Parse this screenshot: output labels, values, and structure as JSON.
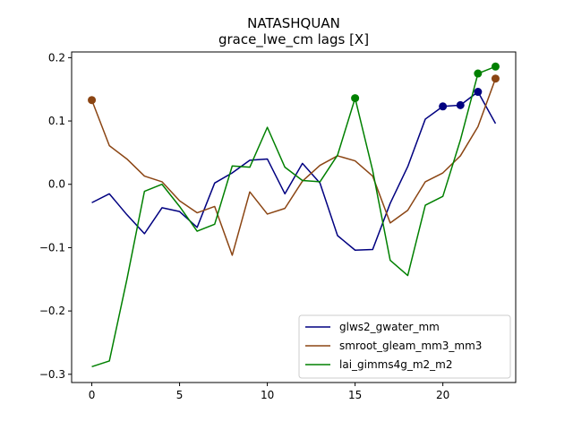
{
  "chart_data": {
    "type": "line",
    "title": "NATASHQUAN",
    "subtitle": "grace_lwe_cm lags [X]",
    "xlabel": "",
    "ylabel": "",
    "xlim": [
      -1.15,
      24.15
    ],
    "ylim": [
      -0.313,
      0.209
    ],
    "x_ticks": [
      0,
      5,
      10,
      15,
      20
    ],
    "x_tick_labels": [
      "0",
      "5",
      "10",
      "15",
      "20"
    ],
    "y_ticks": [
      -0.3,
      -0.2,
      -0.1,
      0.0,
      0.1,
      0.2
    ],
    "y_tick_labels": [
      "−0.3",
      "−0.2",
      "−0.1",
      "0.0",
      "0.1",
      "0.2"
    ],
    "grid": false,
    "legend_position": "lower-right",
    "x": [
      0,
      1,
      2,
      3,
      4,
      5,
      6,
      7,
      8,
      9,
      10,
      11,
      12,
      13,
      14,
      15,
      16,
      17,
      18,
      19,
      20,
      21,
      22,
      23
    ],
    "series": [
      {
        "name": "glws2_gwater_mm",
        "color": "#000080",
        "values": [
          -0.029,
          -0.015,
          -0.048,
          -0.078,
          -0.037,
          -0.043,
          -0.068,
          0.002,
          0.018,
          0.038,
          0.04,
          -0.015,
          0.033,
          0.002,
          -0.081,
          -0.104,
          -0.103,
          -0.03,
          0.028,
          0.103,
          0.123,
          0.125,
          0.146,
          0.096
        ],
        "markers": [
          20,
          21,
          22
        ]
      },
      {
        "name": "smroot_gleam_mm3_mm3",
        "color": "#8B4513",
        "values": [
          0.133,
          0.061,
          0.04,
          0.013,
          0.004,
          -0.026,
          -0.045,
          -0.035,
          -0.112,
          -0.012,
          -0.047,
          -0.038,
          0.005,
          0.03,
          0.045,
          0.037,
          0.013,
          -0.061,
          -0.041,
          0.004,
          0.018,
          0.045,
          0.091,
          0.167
        ],
        "markers": [
          0,
          23
        ]
      },
      {
        "name": "lai_gimms4g_m2_m2",
        "color": "#008000",
        "values": [
          -0.288,
          -0.279,
          -0.15,
          -0.011,
          0.0,
          -0.035,
          -0.074,
          -0.063,
          0.029,
          0.027,
          0.09,
          0.027,
          0.006,
          0.004,
          0.046,
          0.136,
          0.022,
          -0.12,
          -0.144,
          -0.033,
          -0.019,
          0.07,
          0.175,
          0.186
        ],
        "markers": [
          15,
          22,
          23
        ]
      }
    ]
  }
}
